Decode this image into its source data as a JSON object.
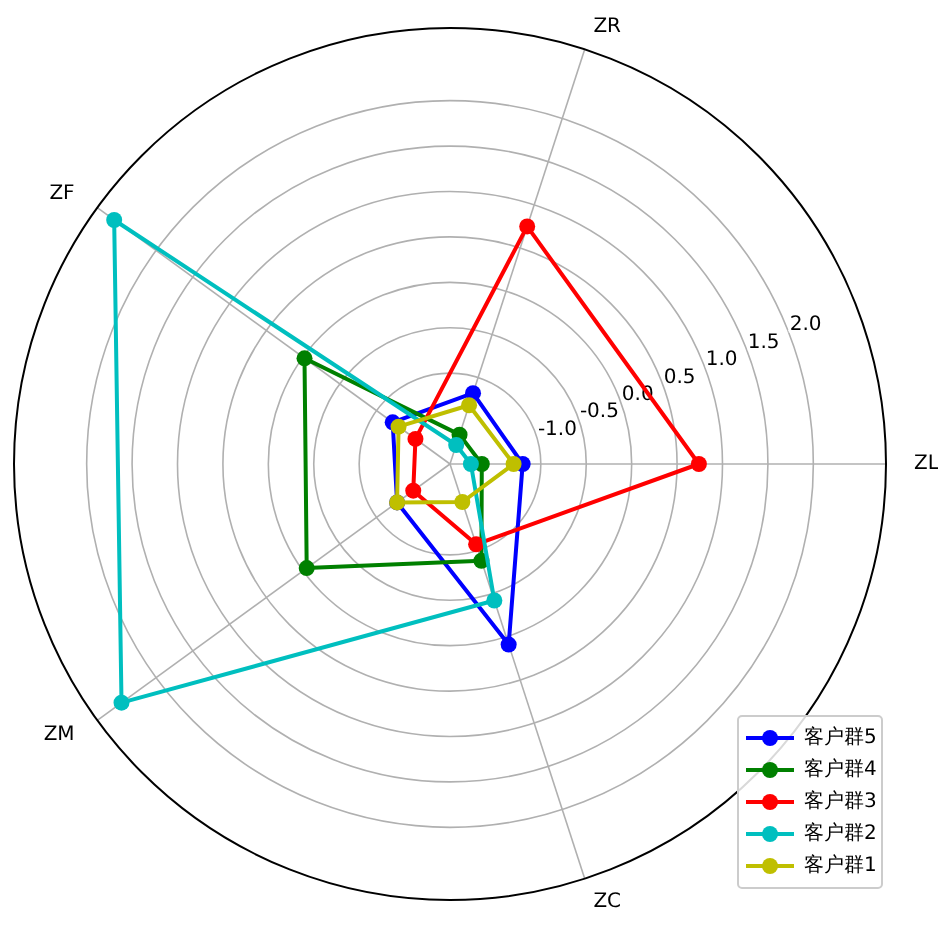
{
  "chart_data": {
    "type": "radar",
    "categories": [
      "ZR",
      "ZL",
      "ZC",
      "ZM",
      "ZF"
    ],
    "series": [
      {
        "name": "客户群5",
        "color": "#0000ff",
        "values": [
          -1.18,
          -1.2,
          0.09,
          -1.28,
          -1.22
        ]
      },
      {
        "name": "客户群4",
        "color": "#008000",
        "values": [
          -1.66,
          -1.65,
          -0.88,
          -0.05,
          -0.02
        ]
      },
      {
        "name": "客户群3",
        "color": "#ff0000",
        "values": [
          0.75,
          0.74,
          -1.07,
          -1.5,
          -1.53
        ]
      },
      {
        "name": "客户群2",
        "color": "#00bfbf",
        "values": [
          -1.78,
          -1.77,
          -0.42,
          2.47,
          2.57
        ]
      },
      {
        "name": "客户群1",
        "color": "#bfbf00",
        "values": [
          -1.32,
          -1.3,
          -1.56,
          -1.28,
          -1.3
        ]
      }
    ],
    "ylim": [
      -2,
      2.8
    ],
    "yticks": [
      {
        "value": -1.0,
        "label": "-1.0"
      },
      {
        "value": -0.5,
        "label": "-0.5"
      },
      {
        "value": 0.0,
        "label": "0.0"
      },
      {
        "value": 0.5,
        "label": "0.5"
      },
      {
        "value": 1.0,
        "label": "1.0"
      },
      {
        "value": 1.5,
        "label": "1.5"
      },
      {
        "value": 2.0,
        "label": "2.0"
      }
    ],
    "grid": true,
    "legend": "bottom right",
    "marker": "circle",
    "line_style": "solid"
  }
}
